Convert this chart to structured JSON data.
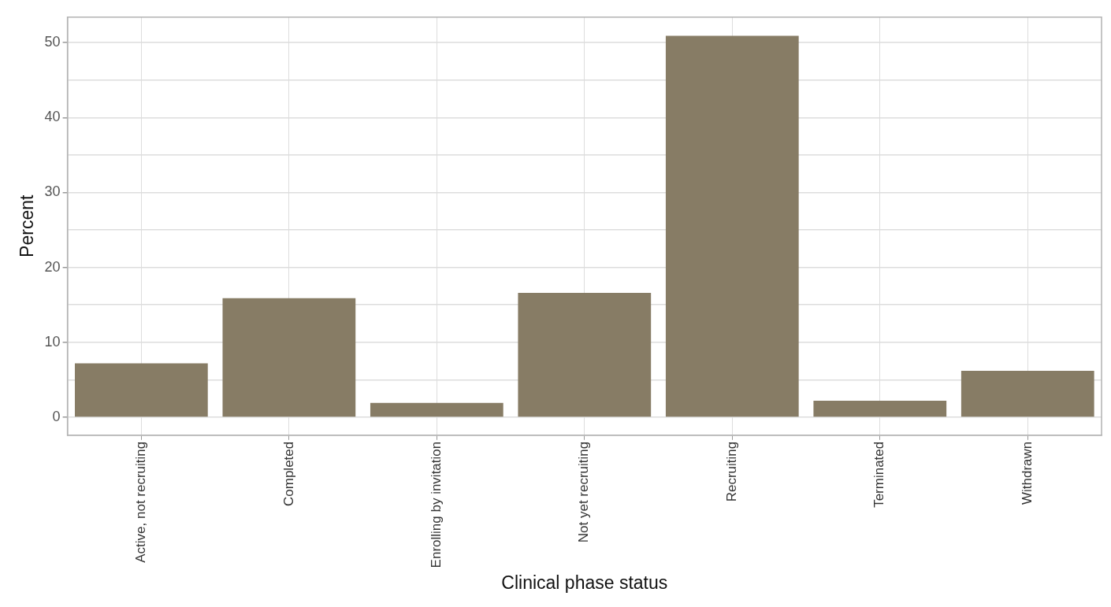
{
  "chart_data": {
    "type": "bar",
    "xlabel": "Clinical phase status",
    "ylabel": "Percent",
    "categories": [
      "Active, not recruiting",
      "Completed",
      "Enrolling by invitation",
      "Not yet recruiting",
      "Recruiting",
      "Terminated",
      "Withdrawn"
    ],
    "values": [
      7.2,
      15.9,
      1.9,
      16.6,
      50.9,
      2.2,
      6.2
    ],
    "color": "#877c65",
    "ylim": [
      -2.4,
      53.4
    ],
    "yticks": [
      0,
      {
        "value": 5,
        "label": null
      },
      10,
      {
        "value": 15,
        "label": null
      },
      20,
      {
        "value": 25,
        "label": null
      },
      30,
      {
        "value": 35,
        "label": null
      },
      40,
      {
        "value": 45,
        "label": null
      },
      50
    ],
    "grid": true
  }
}
